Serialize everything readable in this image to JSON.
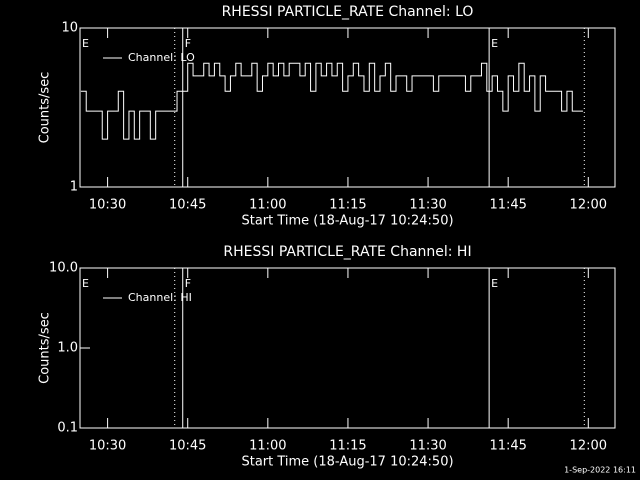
{
  "chart_data": [
    {
      "type": "line",
      "title": "RHESSI PARTICLE_RATE Channel: LO",
      "xlabel": "Start Time (18-Aug-17 10:24:50)",
      "ylabel": "Counts/sec",
      "x": [
        "10:25",
        "10:26",
        "10:27",
        "10:28",
        "10:29",
        "10:30",
        "10:31",
        "10:32",
        "10:33",
        "10:34",
        "10:35",
        "10:36",
        "10:37",
        "10:38",
        "10:39",
        "10:40",
        "10:41",
        "10:42",
        "10:43",
        "10:44",
        "10:45",
        "10:46",
        "10:47",
        "10:48",
        "10:49",
        "10:50",
        "10:51",
        "10:52",
        "10:53",
        "10:54",
        "10:55",
        "10:56",
        "10:57",
        "10:58",
        "10:59",
        "11:00",
        "11:01",
        "11:02",
        "11:03",
        "11:04",
        "11:05",
        "11:06",
        "11:07",
        "11:08",
        "11:09",
        "11:10",
        "11:11",
        "11:12",
        "11:13",
        "11:14",
        "11:15",
        "11:16",
        "11:17",
        "11:18",
        "11:19",
        "11:20",
        "11:21",
        "11:22",
        "11:23",
        "11:24",
        "11:25",
        "11:26",
        "11:27",
        "11:28",
        "11:29",
        "11:30",
        "11:31",
        "11:32",
        "11:33",
        "11:34",
        "11:35",
        "11:36",
        "11:37",
        "11:38",
        "11:39",
        "11:40",
        "11:41",
        "11:42",
        "11:43",
        "11:44",
        "11:45",
        "11:46",
        "11:47",
        "11:48",
        "11:49",
        "11:50",
        "11:51",
        "11:52",
        "11:53",
        "11:54",
        "11:55",
        "11:56",
        "11:57",
        "11:58",
        "11:59"
      ],
      "series": [
        {
          "name": "Channel: LO",
          "color": "#ffffff",
          "values": [
            4,
            3,
            3,
            3,
            2,
            3,
            3,
            4,
            2,
            3,
            2,
            3,
            3,
            2,
            3,
            3,
            3,
            3,
            4,
            4,
            6,
            5,
            5,
            6,
            5,
            6,
            5,
            4,
            5,
            6,
            5,
            5,
            6,
            4,
            5,
            6,
            5,
            6,
            5,
            6,
            6,
            5,
            6,
            4,
            6,
            5,
            6,
            5,
            6,
            4,
            5,
            6,
            5,
            4,
            6,
            4,
            5,
            6,
            4,
            5,
            5,
            4,
            5,
            5,
            5,
            5,
            4,
            5,
            5,
            5,
            5,
            5,
            4,
            5,
            5,
            6,
            4,
            5,
            4,
            3,
            5,
            4,
            6,
            4,
            5,
            3,
            5,
            4,
            4,
            4,
            3,
            4,
            3,
            3,
            3
          ]
        }
      ],
      "xlim": [
        "10:24:50",
        "12:05"
      ],
      "ylim": [
        1,
        10
      ],
      "log_y": true,
      "xticks": [
        "10:30",
        "10:45",
        "11:00",
        "11:15",
        "11:30",
        "11:45",
        "12:00"
      ],
      "yticks": [
        10,
        1
      ],
      "flag_lines": [
        {
          "x": "10:42:34",
          "style": "dotted"
        },
        {
          "x": "10:44:04",
          "style": "solid"
        },
        {
          "x": "11:41:26",
          "style": "solid"
        },
        {
          "x": "11:59:15",
          "style": "dotted"
        }
      ],
      "flags": [
        {
          "text": "E",
          "x": "10:24:50"
        },
        {
          "text": "F",
          "x": "10:44:04"
        },
        {
          "text": "E",
          "x": "11:41:26"
        }
      ]
    },
    {
      "type": "line",
      "title": "RHESSI PARTICLE_RATE Channel: HI",
      "xlabel": "Start Time (18-Aug-17 10:24:50)",
      "ylabel": "Counts/sec",
      "x": [],
      "series": [
        {
          "name": "Channel: HI",
          "color": "#ffffff",
          "values": []
        }
      ],
      "xlim": [
        "10:24:50",
        "12:05"
      ],
      "ylim": [
        0.1,
        10
      ],
      "log_y": true,
      "xticks": [
        "10:30",
        "10:45",
        "11:00",
        "11:15",
        "11:30",
        "11:45",
        "12:00"
      ],
      "yticks": [
        {
          "value": 10,
          "label": "10.0"
        },
        {
          "value": 1,
          "label": "1.0"
        },
        0.1
      ],
      "flag_lines": [
        {
          "x": "10:42:34",
          "style": "dotted"
        },
        {
          "x": "10:44:04",
          "style": "solid"
        },
        {
          "x": "11:41:26",
          "style": "solid"
        },
        {
          "x": "11:59:15",
          "style": "dotted"
        }
      ],
      "flags": [
        {
          "text": "E",
          "x": "10:24:50"
        },
        {
          "text": "F",
          "x": "10:44:04"
        },
        {
          "text": "E",
          "x": "11:41:26"
        }
      ]
    }
  ],
  "footer": "1-Sep-2022 16:11"
}
